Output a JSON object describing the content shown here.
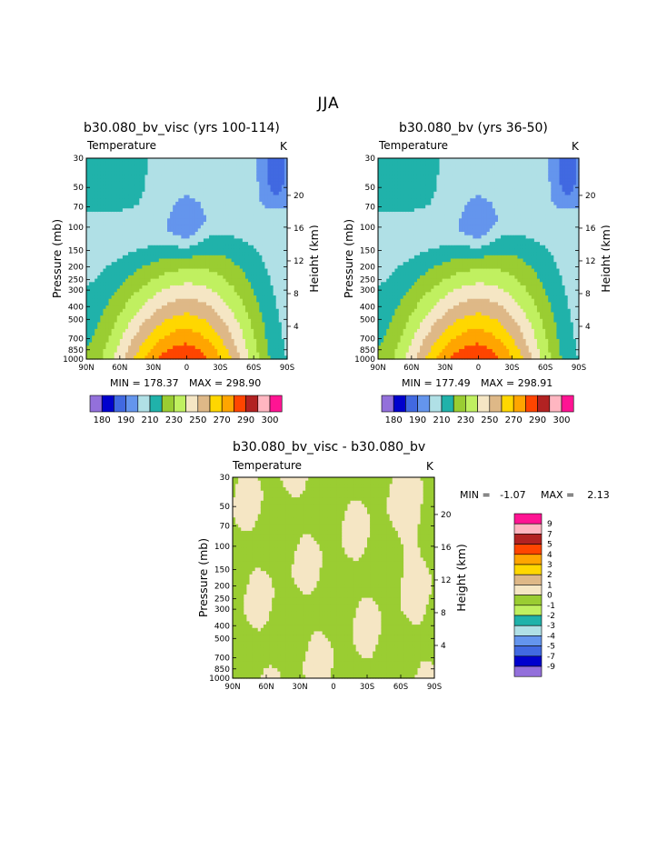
{
  "page": {
    "title": "JJA"
  },
  "colors": {
    "main_levels": [
      "#9370db",
      "#0000cd",
      "#4169e1",
      "#6495ed",
      "#b0e0e6",
      "#20b2aa",
      "#9acd32",
      "#c0f060",
      "#f5e6c4",
      "#deb887",
      "#ffd700",
      "#ffa500",
      "#ff4500",
      "#b22222",
      "#ffb6c1",
      "#ff1493"
    ],
    "diff_levels": [
      "#9370db",
      "#0000cd",
      "#4169e1",
      "#6495ed",
      "#b0e0e6",
      "#20b2aa",
      "#c0f060",
      "#9acd32",
      "#f5e6c4",
      "#deb887",
      "#ffd700",
      "#ffa500",
      "#ff4500",
      "#b22222",
      "#ffb6c1",
      "#ff1493"
    ]
  },
  "panels": [
    {
      "title": "b30.080_bv_visc (yrs 100-114)",
      "var": "Temperature",
      "unit": "K",
      "min_label": "MIN = 178.37",
      "max_label": "MAX = 298.90"
    },
    {
      "title": "b30.080_bv (yrs 36-50)",
      "var": "Temperature",
      "unit": "K",
      "min_label": "MIN = 177.49",
      "max_label": "MAX = 298.91"
    },
    {
      "title": "b30.080_bv_visc - b30.080_bv",
      "var": "Temperature",
      "unit": "K",
      "min_label": "MIN =   -1.07",
      "max_label": "MAX =    2.13"
    }
  ],
  "chart_data": [
    {
      "type": "contour",
      "title": "b30.080_bv_visc (yrs 100-114)",
      "field": "Temperature",
      "units": "K",
      "min": 178.37,
      "max": 298.9,
      "xlabel": "",
      "ylabel": "Pressure (mb)",
      "ylabel_right": "Height (km)",
      "x_ticks": [
        "90N",
        "60N",
        "30N",
        "0",
        "30S",
        "60S",
        "90S"
      ],
      "y_ticks": [
        "30",
        "50",
        "70",
        "100",
        "150",
        "200",
        "250",
        "300",
        "400",
        "500",
        "700",
        "850",
        "1000"
      ],
      "y_right_ticks": [
        "20",
        "16",
        "12",
        "8",
        "4"
      ],
      "colorbar_labels": [
        "180",
        "190",
        "210",
        "230",
        "250",
        "270",
        "290",
        "300"
      ],
      "levels": [
        180,
        190,
        200,
        210,
        220,
        230,
        240,
        250,
        260,
        270,
        280,
        290,
        300
      ]
    },
    {
      "type": "contour",
      "title": "b30.080_bv (yrs 36-50)",
      "field": "Temperature",
      "units": "K",
      "min": 177.49,
      "max": 298.91,
      "xlabel": "",
      "ylabel": "Pressure (mb)",
      "ylabel_right": "Height (km)",
      "x_ticks": [
        "90N",
        "60N",
        "30N",
        "0",
        "30S",
        "60S",
        "90S"
      ],
      "y_ticks": [
        "30",
        "50",
        "70",
        "100",
        "150",
        "200",
        "250",
        "300",
        "400",
        "500",
        "700",
        "850",
        "1000"
      ],
      "y_right_ticks": [
        "20",
        "16",
        "12",
        "8",
        "4"
      ],
      "colorbar_labels": [
        "180",
        "190",
        "210",
        "230",
        "250",
        "270",
        "290",
        "300"
      ],
      "levels": [
        180,
        190,
        200,
        210,
        220,
        230,
        240,
        250,
        260,
        270,
        280,
        290,
        300
      ]
    },
    {
      "type": "contour",
      "title": "b30.080_bv_visc - b30.080_bv",
      "field": "Temperature",
      "units": "K",
      "min": -1.07,
      "max": 2.13,
      "xlabel": "",
      "ylabel": "Pressure (mb)",
      "ylabel_right": "Height (km)",
      "x_ticks": [
        "90N",
        "60N",
        "30N",
        "0",
        "30S",
        "60S",
        "90S"
      ],
      "y_ticks": [
        "30",
        "50",
        "70",
        "100",
        "150",
        "200",
        "250",
        "300",
        "400",
        "500",
        "700",
        "850",
        "1000"
      ],
      "y_right_ticks": [
        "20",
        "16",
        "12",
        "8",
        "4"
      ],
      "colorbar_labels": [
        "9",
        "7",
        "5",
        "4",
        "3",
        "2",
        "1",
        "0",
        "-1",
        "-2",
        "-3",
        "-4",
        "-5",
        "-7",
        "-9"
      ],
      "levels": [
        -9,
        -7,
        -5,
        -4,
        -3,
        -2,
        -1,
        0,
        1,
        2,
        3,
        4,
        5,
        7,
        9
      ]
    }
  ]
}
